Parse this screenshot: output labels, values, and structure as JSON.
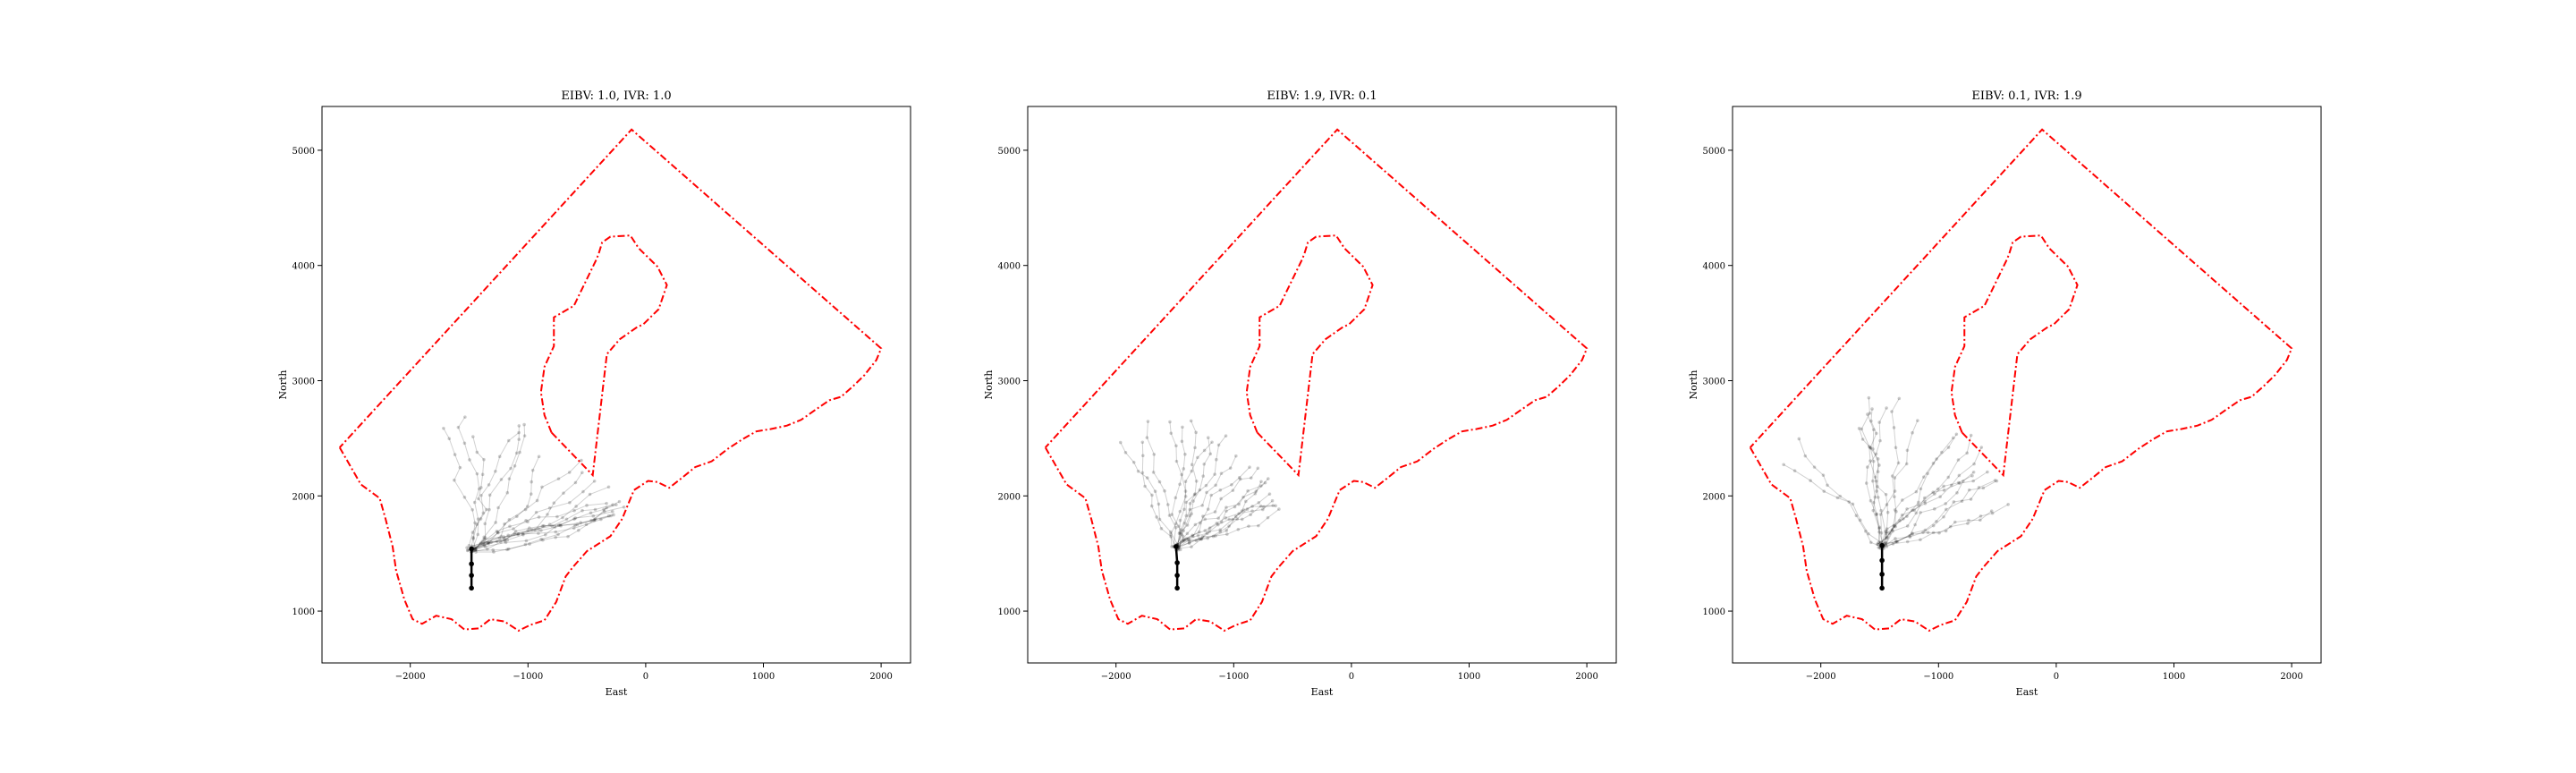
{
  "chart_data": [
    {
      "type": "line",
      "title": "EIBV: 1.0, IVR: 1.0",
      "xlabel": "East",
      "ylabel": "North",
      "xlim": [
        -2750,
        2250
      ],
      "ylim": [
        550,
        5380
      ],
      "xticks": [
        -2000,
        -1000,
        0,
        1000,
        2000
      ],
      "yticks": [
        1000,
        2000,
        3000,
        4000,
        5000
      ],
      "xtick_labels": [
        "−2000",
        "−1000",
        "0",
        "1000",
        "2000"
      ],
      "ytick_labels": [
        "1000",
        "2000",
        "3000",
        "4000",
        "5000"
      ],
      "grid": false,
      "path": {
        "x": [
          -1480,
          -1480,
          -1480,
          -1480
        ],
        "y": [
          1200,
          1310,
          1410,
          1540
        ]
      },
      "trajectory_spread": {
        "x_center": -1350,
        "y_center": 1850,
        "x_radius": 600,
        "y_radius": 420,
        "lean": 0.7
      }
    },
    {
      "type": "line",
      "title": "EIBV: 1.9, IVR: 0.1",
      "xlabel": "East",
      "ylabel": "North",
      "xlim": [
        -2750,
        2250
      ],
      "ylim": [
        550,
        5380
      ],
      "xticks": [
        -2000,
        -1000,
        0,
        1000,
        2000
      ],
      "yticks": [
        1000,
        2000,
        3000,
        4000,
        5000
      ],
      "xtick_labels": [
        "−2000",
        "−1000",
        "0",
        "1000",
        "2000"
      ],
      "ytick_labels": [
        "1000",
        "2000",
        "3000",
        "4000",
        "5000"
      ],
      "grid": false,
      "path": {
        "x": [
          -1480,
          -1480,
          -1480,
          -1490
        ],
        "y": [
          1200,
          1310,
          1420,
          1560
        ]
      },
      "trajectory_spread": {
        "x_center": -1500,
        "y_center": 1870,
        "x_radius": 400,
        "y_radius": 420,
        "lean": 0.5
      }
    },
    {
      "type": "line",
      "title": "EIBV: 0.1, IVR: 1.9",
      "xlabel": "East",
      "ylabel": "North",
      "xlim": [
        -2750,
        2250
      ],
      "ylim": [
        550,
        5380
      ],
      "xticks": [
        -2000,
        -1000,
        0,
        1000,
        2000
      ],
      "yticks": [
        1000,
        2000,
        3000,
        4000,
        5000
      ],
      "xtick_labels": [
        "−2000",
        "−1000",
        "0",
        "1000",
        "2000"
      ],
      "ytick_labels": [
        "1000",
        "2000",
        "3000",
        "4000",
        "5000"
      ],
      "grid": false,
      "path": {
        "x": [
          -1480,
          -1480,
          -1480,
          -1480
        ],
        "y": [
          1200,
          1320,
          1440,
          1570
        ]
      },
      "trajectory_spread": {
        "x_center": -1400,
        "y_center": 1950,
        "x_radius": 500,
        "y_radius": 480,
        "lean": 0.3
      }
    }
  ],
  "boundary": {
    "color": "#ff0000",
    "outer": {
      "x": [
        -2600,
        -2420,
        -2260,
        -2210,
        -2150,
        -2120,
        -2050,
        -1980,
        -1900,
        -1780,
        -1650,
        -1540,
        -1420,
        -1320,
        -1200,
        -1080,
        -980,
        -860,
        -760,
        -680,
        -620,
        -500,
        -300,
        -200,
        -100,
        20,
        100,
        200,
        300,
        420,
        560,
        700,
        820,
        940,
        1060,
        1200,
        1320,
        1460,
        1560,
        1660,
        1760,
        1860,
        1960,
        2000,
        -120,
        -2600
      ],
      "y": [
        2420,
        2100,
        1980,
        1800,
        1560,
        1350,
        1100,
        930,
        890,
        960,
        930,
        840,
        850,
        930,
        910,
        830,
        880,
        920,
        1080,
        1300,
        1380,
        1520,
        1650,
        1800,
        2050,
        2130,
        2120,
        2070,
        2150,
        2250,
        2300,
        2410,
        2490,
        2560,
        2580,
        2610,
        2660,
        2760,
        2830,
        2860,
        2950,
        3050,
        3180,
        3280,
        5180,
        2420
      ]
    },
    "inner": {
      "x": [
        -800,
        -860,
        -890,
        -860,
        -780,
        -780,
        -610,
        -420,
        -400,
        -370,
        -300,
        -130,
        -60,
        100,
        180,
        110,
        -20,
        -80,
        -220,
        -330,
        -450,
        -800
      ],
      "y": [
        2550,
        2700,
        2900,
        3120,
        3300,
        3550,
        3650,
        4050,
        4100,
        4200,
        4250,
        4260,
        4150,
        3990,
        3830,
        3620,
        3490,
        3460,
        3360,
        3230,
        2180,
        2550
      ]
    }
  }
}
